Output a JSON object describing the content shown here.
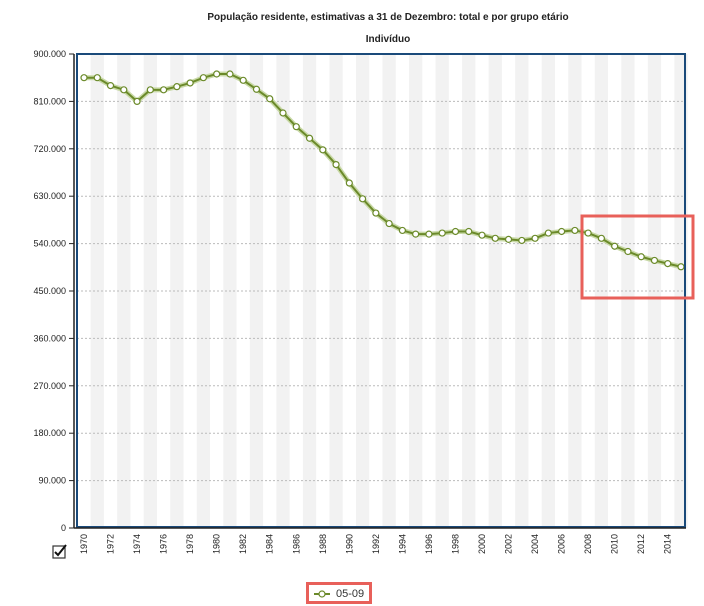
{
  "chart_data": {
    "type": "line",
    "title": "População residente, estimativas a 31 de Dezembro: total e por grupo etário",
    "subtitle": "Indivíduo",
    "x": [
      1970,
      1971,
      1972,
      1973,
      1974,
      1975,
      1976,
      1977,
      1978,
      1979,
      1980,
      1981,
      1982,
      1983,
      1984,
      1985,
      1986,
      1987,
      1988,
      1989,
      1990,
      1991,
      1992,
      1993,
      1994,
      1995,
      1996,
      1997,
      1998,
      1999,
      2000,
      2001,
      2002,
      2003,
      2004,
      2005,
      2006,
      2007,
      2008,
      2009,
      2010,
      2011,
      2012,
      2013,
      2014,
      2015
    ],
    "x_tick_labels": [
      "1970",
      "1972",
      "1974",
      "1976",
      "1978",
      "1980",
      "1982",
      "1984",
      "1986",
      "1988",
      "1990",
      "1992",
      "1994",
      "1996",
      "1998",
      "2000",
      "2002",
      "2004",
      "2006",
      "2008",
      "2010",
      "2012",
      "2014"
    ],
    "ylim": [
      0,
      900000
    ],
    "y_tick_labels": [
      "0",
      "90.000",
      "180.000",
      "270.000",
      "360.000",
      "450.000",
      "540.000",
      "630.000",
      "720.000",
      "810.000",
      "900.000"
    ],
    "series": [
      {
        "name": "05-09",
        "color": "#6b8a2a",
        "values": [
          855000,
          855000,
          840000,
          832000,
          810000,
          832000,
          832000,
          838000,
          845000,
          855000,
          862000,
          862000,
          850000,
          833000,
          815000,
          788000,
          762000,
          740000,
          718000,
          690000,
          655000,
          625000,
          598000,
          578000,
          565000,
          558000,
          558000,
          560000,
          563000,
          563000,
          556000,
          550000,
          548000,
          546000,
          550000,
          560000,
          563000,
          565000,
          560000,
          550000,
          535000,
          525000,
          515000,
          508000,
          502000,
          496000
        ]
      }
    ],
    "grid": true,
    "legend_position": "bottom",
    "highlight_color": "#e8605a"
  },
  "legend": {
    "label": "05-09"
  }
}
